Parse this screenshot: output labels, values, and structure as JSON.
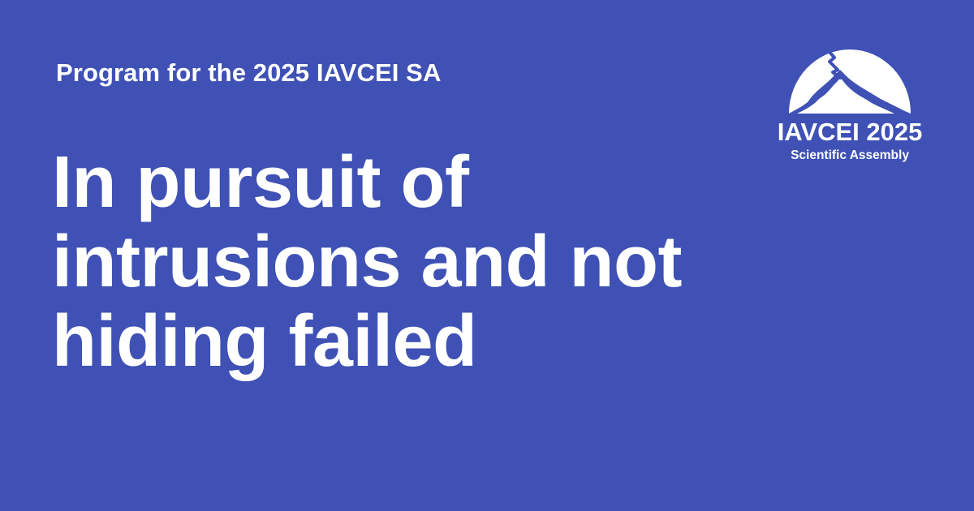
{
  "card": {
    "background_color": "#3f51b5",
    "text_color": "#ffffff",
    "eyebrow": "Program for the 2025 IAVCEI SA",
    "title_lines": [
      "In pursuit of",
      "intrusions and not",
      "hiding failed"
    ]
  },
  "logo": {
    "name": "IAVCEI 2025",
    "subtitle": "Scientific Assembly",
    "icon": "volcano-mountain-icon"
  }
}
